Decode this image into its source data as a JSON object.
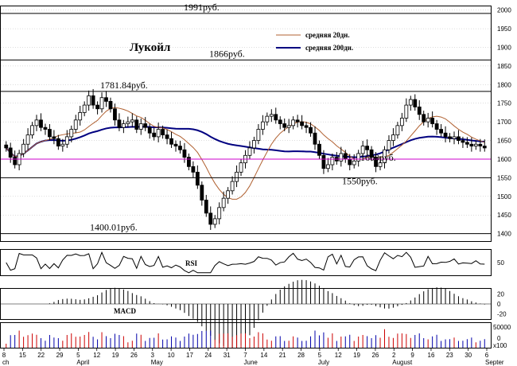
{
  "chart_data": {
    "type": "candlestick",
    "title": "Лукойл",
    "y_ticks": [
      1400,
      1450,
      1500,
      1550,
      1600,
      1650,
      1700,
      1750,
      1800,
      1850,
      1900,
      1950,
      2000
    ],
    "ylim": [
      1380,
      2010
    ],
    "x_ticks": [
      "8",
      "15",
      "22",
      "29",
      "5",
      "12",
      "19",
      "26",
      "3",
      "10",
      "17",
      "24",
      "31",
      "7",
      "14",
      "21",
      "28",
      "5",
      "12",
      "19",
      "26",
      "2",
      "9",
      "16",
      "23",
      "30",
      "6"
    ],
    "month_labels": [
      "ch",
      "April",
      "May",
      "June",
      "July",
      "August",
      "Septer"
    ],
    "levels": [
      {
        "value": 1991,
        "label": "1991руб.",
        "color": "#000000"
      },
      {
        "value": 1866,
        "label": "1866руб.",
        "color": "#000000"
      },
      {
        "value": 1781.84,
        "label": "1781.84руб.",
        "color": "#000000"
      },
      {
        "value": 1600,
        "label": "1600руб.",
        "color": "#cc00cc"
      },
      {
        "value": 1550,
        "label": "1550руб.",
        "color": "#000000"
      },
      {
        "value": 1400.01,
        "label": "1400.01руб.",
        "color": "#000000"
      }
    ],
    "legend": [
      {
        "label": "средняя 20дн.",
        "color": "#b06030"
      },
      {
        "label": "средняя 200дн.",
        "color": "#000080"
      }
    ],
    "close": [
      1630,
      1605,
      1585,
      1615,
      1640,
      1665,
      1690,
      1705,
      1685,
      1680,
      1660,
      1655,
      1635,
      1640,
      1660,
      1680,
      1705,
      1725,
      1745,
      1770,
      1745,
      1735,
      1765,
      1755,
      1735,
      1705,
      1685,
      1695,
      1700,
      1705,
      1680,
      1695,
      1685,
      1670,
      1660,
      1680,
      1665,
      1655,
      1640,
      1635,
      1625,
      1605,
      1580,
      1565,
      1530,
      1490,
      1455,
      1425,
      1440,
      1470,
      1495,
      1515,
      1540,
      1565,
      1590,
      1610,
      1630,
      1650,
      1680,
      1700,
      1715,
      1720,
      1705,
      1695,
      1685,
      1690,
      1705,
      1700,
      1690,
      1685,
      1670,
      1640,
      1610,
      1575,
      1585,
      1605,
      1595,
      1615,
      1600,
      1585,
      1595,
      1615,
      1635,
      1625,
      1605,
      1580,
      1590,
      1625,
      1650,
      1665,
      1690,
      1710,
      1745,
      1760,
      1740,
      1720,
      1700,
      1710,
      1695,
      1680,
      1670,
      1660,
      1655,
      1660,
      1650,
      1645,
      1640,
      1635,
      1640,
      1635,
      1630
    ],
    "volume_scale_label": "x100",
    "volume_ticks": [
      "50000",
      "0"
    ],
    "rsi_label": "RSI",
    "rsi_ticks": [
      "50"
    ],
    "macd_label": "MACD",
    "macd_ticks": [
      "20",
      "0",
      "-20"
    ]
  }
}
